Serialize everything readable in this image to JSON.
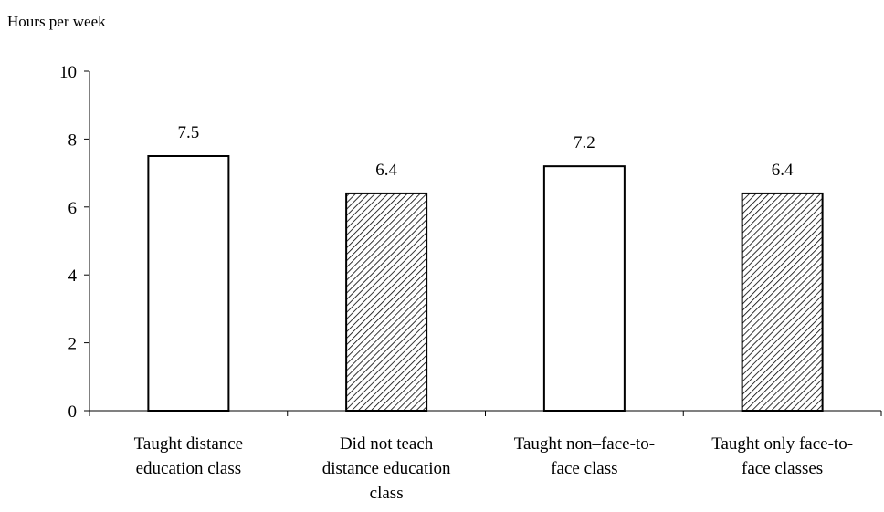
{
  "chart_data": {
    "type": "bar",
    "title": "",
    "xlabel": "",
    "ylabel": "Hours per week",
    "ylim": [
      0,
      10
    ],
    "yticks": [
      0,
      2,
      4,
      6,
      8,
      10
    ],
    "grid": false,
    "categories": [
      "Taught distance education class",
      "Did not teach distance education class",
      "Taught non–face-to-face class",
      "Taught only face-to-face classes"
    ],
    "category_display": [
      "Taught distance\neducation class",
      "Did not teach\ndistance education\nclass",
      "Taught non–face-to-\nface class",
      "Taught only face-to-\nface classes"
    ],
    "values": [
      7.5,
      6.4,
      7.2,
      6.4
    ],
    "value_labels": [
      "7.5",
      "6.4",
      "7.2",
      "6.4"
    ],
    "bar_fill": [
      "plain",
      "hatched",
      "plain",
      "hatched"
    ],
    "colors": {
      "bar_stroke": "#000000",
      "plain_fill": "#ffffff",
      "hatch": "#000000"
    }
  }
}
